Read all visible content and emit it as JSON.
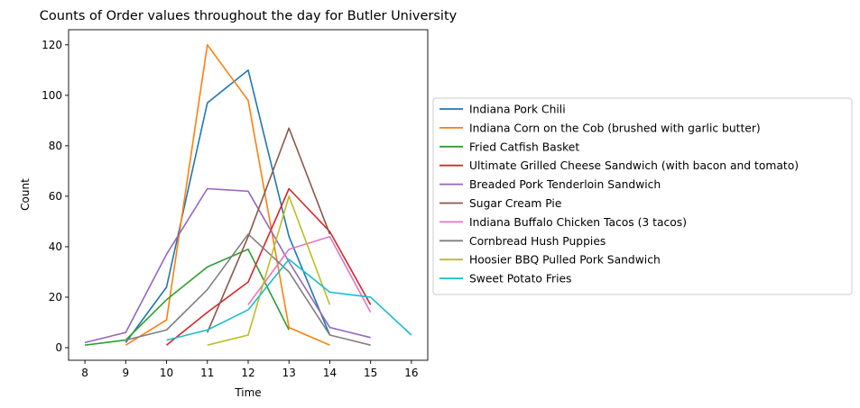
{
  "chart_data": {
    "type": "line",
    "title": "Counts of Order values throughout the day for Butler University",
    "xlabel": "Time",
    "ylabel": "Count",
    "xlim": [
      7.6,
      16.4
    ],
    "ylim": [
      -5,
      126
    ],
    "xticks": [
      8,
      9,
      10,
      11,
      12,
      13,
      14,
      15,
      16
    ],
    "yticks": [
      0,
      20,
      40,
      60,
      80,
      100,
      120
    ],
    "grid": false,
    "legend_position": "outside right",
    "series": [
      {
        "name": "Indiana Pork Chili",
        "color": "#1f77b4",
        "x": [
          9,
          10,
          11,
          12,
          13,
          14
        ],
        "y": [
          2,
          24,
          97,
          110,
          44,
          5
        ]
      },
      {
        "name": "Indiana Corn on the Cob (brushed with garlic butter)",
        "color": "#ff7f0e",
        "x": [
          9,
          10,
          11,
          12,
          13,
          14
        ],
        "y": [
          1,
          11,
          120,
          98,
          8,
          1
        ]
      },
      {
        "name": "Fried Catfish Basket",
        "color": "#2ca02c",
        "x": [
          8,
          9,
          10,
          11,
          12,
          13
        ],
        "y": [
          1,
          3,
          19,
          32,
          39,
          7
        ]
      },
      {
        "name": "Ultimate Grilled Cheese Sandwich (with bacon and tomato)",
        "color": "#d62728",
        "x": [
          10,
          11,
          12,
          13,
          14,
          15
        ],
        "y": [
          1,
          14,
          26,
          63,
          46,
          17
        ]
      },
      {
        "name": "Breaded Pork Tenderloin Sandwich",
        "color": "#9467bd",
        "x": [
          8,
          9,
          10,
          11,
          12,
          13,
          14,
          15
        ],
        "y": [
          2,
          6,
          37,
          63,
          62,
          34,
          8,
          4
        ]
      },
      {
        "name": "Sugar Cream Pie",
        "color": "#8c564b",
        "x": [
          11,
          12,
          13,
          14
        ],
        "y": [
          6,
          44,
          87,
          45
        ]
      },
      {
        "name": "Indiana Buffalo Chicken Tacos (3 tacos)",
        "color": "#e377c2",
        "x": [
          12,
          13,
          14,
          15
        ],
        "y": [
          17,
          39,
          44,
          14
        ]
      },
      {
        "name": "Cornbread Hush Puppies",
        "color": "#7f7f7f",
        "x": [
          9,
          10,
          11,
          12,
          13,
          14,
          15
        ],
        "y": [
          3,
          7,
          23,
          45,
          30,
          5,
          1
        ]
      },
      {
        "name": "Hoosier BBQ Pulled Pork Sandwich",
        "color": "#bcbd22",
        "x": [
          11,
          12,
          13,
          14
        ],
        "y": [
          1,
          5,
          60,
          17
        ]
      },
      {
        "name": "Sweet Potato Fries",
        "color": "#17becf",
        "x": [
          10,
          11,
          12,
          13,
          14,
          15,
          16
        ],
        "y": [
          3,
          7,
          15,
          35,
          22,
          20,
          5
        ]
      }
    ]
  }
}
